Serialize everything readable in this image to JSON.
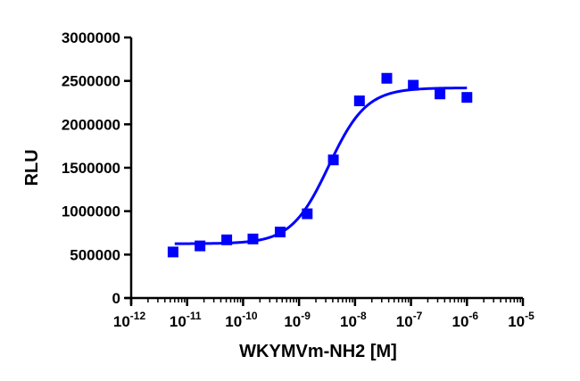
{
  "chart_data": {
    "type": "scatter",
    "title": "",
    "xlabel": "WKYMVm-NH2 [M]",
    "ylabel": "RLU",
    "x_scale": "log",
    "xlim": [
      1e-12,
      1e-05
    ],
    "ylim": [
      0,
      3000000
    ],
    "x_ticks": [
      {
        "base": "10",
        "exp": "-12"
      },
      {
        "base": "10",
        "exp": "-11"
      },
      {
        "base": "10",
        "exp": "-10"
      },
      {
        "base": "10",
        "exp": "-9"
      },
      {
        "base": "10",
        "exp": "-8"
      },
      {
        "base": "10",
        "exp": "-7"
      },
      {
        "base": "10",
        "exp": "-6"
      },
      {
        "base": "10",
        "exp": "-5"
      }
    ],
    "y_ticks": [
      "0",
      "500000",
      "1000000",
      "1500000",
      "2000000",
      "2500000",
      "3000000"
    ],
    "grid": false,
    "legend": "none",
    "colors": {
      "series": "#0000ff",
      "axis": "#000000"
    },
    "series": [
      {
        "marker": "square",
        "x": [
          5.6e-12,
          1.7e-11,
          5.1e-11,
          1.5e-10,
          4.6e-10,
          1.4e-09,
          4.1e-09,
          1.2e-08,
          3.7e-08,
          1.1e-07,
          3.3e-07,
          1e-06
        ],
        "y": [
          530000,
          600000,
          670000,
          680000,
          760000,
          970000,
          1590000,
          2270000,
          2530000,
          2450000,
          2350000,
          2310000
        ]
      }
    ],
    "fit_curve": {
      "model": "4PL",
      "bottom": 625000,
      "top": 2420000,
      "ec50": 3.4e-09,
      "hill": 1.3,
      "x_range": [
        6e-12,
        1e-06
      ]
    }
  }
}
